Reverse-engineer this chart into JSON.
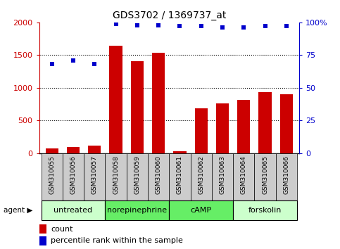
{
  "title": "GDS3702 / 1369737_at",
  "samples": [
    "GSM310055",
    "GSM310056",
    "GSM310057",
    "GSM310058",
    "GSM310059",
    "GSM310060",
    "GSM310061",
    "GSM310062",
    "GSM310063",
    "GSM310064",
    "GSM310065",
    "GSM310066"
  ],
  "counts": [
    75,
    90,
    110,
    1640,
    1410,
    1540,
    30,
    690,
    760,
    820,
    930,
    900
  ],
  "percentiles": [
    68,
    71,
    68,
    99,
    98,
    98,
    97,
    97,
    96,
    96,
    97,
    97
  ],
  "agents": [
    {
      "label": "untreated",
      "start": 0,
      "end": 3,
      "color": "#ccffcc"
    },
    {
      "label": "norepinephrine",
      "start": 3,
      "end": 6,
      "color": "#66ee66"
    },
    {
      "label": "cAMP",
      "start": 6,
      "end": 9,
      "color": "#66ee66"
    },
    {
      "label": "forskolin",
      "start": 9,
      "end": 12,
      "color": "#66ee66"
    }
  ],
  "bar_color": "#cc0000",
  "dot_color": "#0000cc",
  "left_ylim": [
    0,
    2000
  ],
  "right_ylim": [
    0,
    100
  ],
  "left_yticks": [
    0,
    500,
    1000,
    1500,
    2000
  ],
  "right_yticks": [
    0,
    25,
    50,
    75,
    100
  ],
  "left_yticklabels": [
    "0",
    "500",
    "1000",
    "1500",
    "2000"
  ],
  "right_yticklabels": [
    "0",
    "25",
    "50",
    "75",
    "100%"
  ],
  "tick_label_bg": "#cccccc",
  "title_fontsize": 10
}
